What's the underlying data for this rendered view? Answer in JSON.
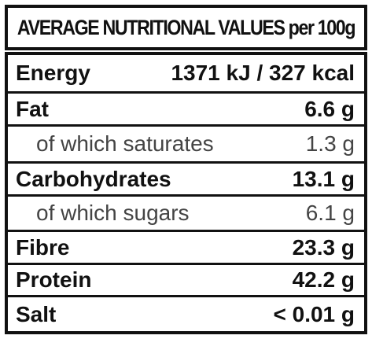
{
  "header": {
    "title": "AVERAGE NUTRITIONAL VALUES per 100g"
  },
  "table": {
    "rows": [
      [
        "Energy",
        "1371 kJ / 327 kcal"
      ],
      [
        "Fat",
        "6.6 g"
      ],
      [
        "of which saturates",
        "1.3 g"
      ],
      [
        "Carbohydrates",
        "13.1 g"
      ],
      [
        "of which sugars",
        "6.1 g"
      ],
      [
        "Fibre",
        "23.3 g"
      ],
      [
        "Protein",
        "42.2 g"
      ],
      [
        "Salt",
        "< 0.01 g"
      ]
    ]
  }
}
